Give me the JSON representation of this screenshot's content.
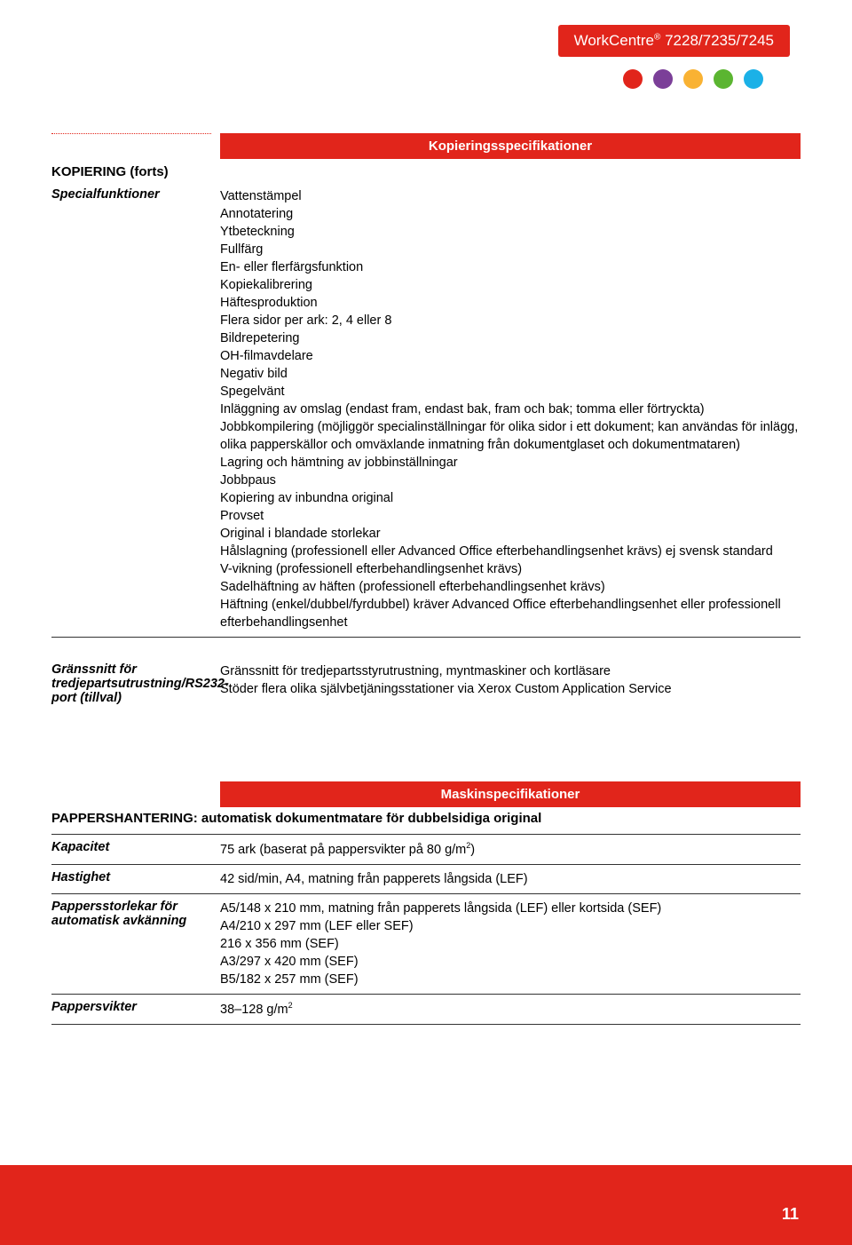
{
  "badge": {
    "prefix": "WorkCentre",
    "models": " 7228/7235/7245"
  },
  "dots": [
    "#e1251b",
    "#7b3f98",
    "#f9b233",
    "#5bb531",
    "#1bb1e7"
  ],
  "block1": {
    "header": "Kopieringsspecifikationer",
    "sectionTitle": "KOPIERING (forts)",
    "rows": [
      {
        "label": "Specialfunktioner",
        "lines": [
          "Vattenstämpel",
          "Annotatering",
          "Ytbeteckning",
          "Fullfärg",
          "En- eller flerfärgsfunktion",
          "Kopiekalibrering",
          "Häftesproduktion",
          "Flera sidor per ark: 2, 4 eller 8",
          "Bildrepetering",
          "OH-filmavdelare",
          "Negativ bild",
          "Spegelvänt",
          "Inläggning av omslag (endast fram, endast bak, fram och bak; tomma eller förtryckta)",
          "Jobbkompilering (möjliggör specialinställningar för olika sidor i ett dokument; kan användas för inlägg, olika papperskällor och omväxlande inmatning från dokumentglaset och dokumentmataren)",
          "Lagring och hämtning av jobbinställningar",
          "Jobbpaus",
          "Kopiering av inbundna original",
          "Provset",
          "Original i blandade storlekar",
          "Hålslagning (professionell eller Advanced Office efterbehandlingsenhet krävs) ej svensk standard",
          "V-vikning (professionell efterbehandlingsenhet krävs)",
          "Sadelhäftning av häften (professionell efterbehandlingsenhet krävs)",
          "Häftning (enkel/dubbel/fyrdubbel) kräver Advanced Office efterbehandlingsenhet eller professionell efterbehandlingsenhet"
        ]
      },
      {
        "label": "Gränssnitt för tredjepartsutrustning/RS232-port (tillval)",
        "lines": [
          "Gränssnitt för tredjepartsstyrutrustning, myntmaskiner och kortläsare",
          "Stöder flera olika självbetjäningsstationer via Xerox Custom Application Service"
        ]
      }
    ]
  },
  "block2": {
    "header": "Maskinspecifikationer",
    "sectionTitle": "PAPPERSHANTERING: automatisk dokumentmatare för dubbelsidiga original",
    "rows": [
      {
        "label": "Kapacitet",
        "value_html": "75 ark (baserat på pappersvikter på 80 g/m<sup class='sq'>2</sup>)"
      },
      {
        "label": "Hastighet",
        "value_html": "42 sid/min, A4, matning från papperets långsida (LEF)"
      },
      {
        "label": "Pappersstorlekar för automatisk avkänning",
        "lines": [
          "A5/148 x 210 mm, matning från papperets långsida (LEF) eller kortsida (SEF)",
          "A4/210 x 297 mm (LEF eller SEF)",
          "216 x 356 mm (SEF)",
          "A3/297 x 420 mm (SEF)",
          "B5/182 x 257 mm (SEF)"
        ]
      },
      {
        "label": "Pappersvikter",
        "value_html": "38–128 g/m<sup class='sq'>2</sup>"
      }
    ]
  },
  "pageNumber": "11"
}
